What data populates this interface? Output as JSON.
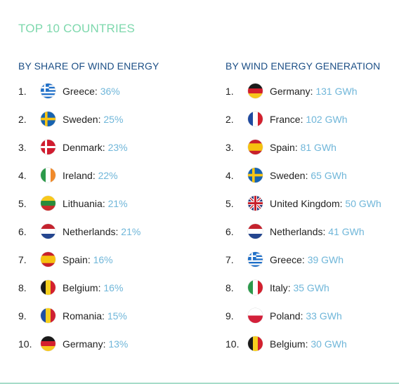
{
  "title": "TOP 10 COUNTRIES",
  "left": {
    "heading": "BY SHARE OF WIND ENERGY",
    "items": [
      {
        "rank": "1.",
        "country": "Greece",
        "value": "36%",
        "flag": "greece-flag"
      },
      {
        "rank": "2.",
        "country": "Sweden",
        "value": "25%",
        "flag": "sweden-flag"
      },
      {
        "rank": "3.",
        "country": "Denmark",
        "value": "23%",
        "flag": "denmark-flag"
      },
      {
        "rank": "4.",
        "country": "Ireland",
        "value": "22%",
        "flag": "ireland-flag"
      },
      {
        "rank": "5.",
        "country": "Lithuania",
        "value": "21%",
        "flag": "lithuania-flag"
      },
      {
        "rank": "6.",
        "country": "Netherlands",
        "value": "21%",
        "flag": "netherlands-flag"
      },
      {
        "rank": "7.",
        "country": "Spain",
        "value": "16%",
        "flag": "spain-flag"
      },
      {
        "rank": "8.",
        "country": "Belgium",
        "value": "16%",
        "flag": "belgium-flag"
      },
      {
        "rank": "9.",
        "country": "Romania",
        "value": "15%",
        "flag": "romania-flag"
      },
      {
        "rank": "10.",
        "country": "Germany",
        "value": "13%",
        "flag": "germany-flag"
      }
    ]
  },
  "right": {
    "heading": "BY WIND ENERGY GENERATION",
    "items": [
      {
        "rank": "1.",
        "country": "Germany",
        "value": "131 GWh",
        "flag": "germany-flag"
      },
      {
        "rank": "2.",
        "country": "France",
        "value": "102 GWh",
        "flag": "france-flag"
      },
      {
        "rank": "3.",
        "country": "Spain",
        "value": "81 GWh",
        "flag": "spain-flag"
      },
      {
        "rank": "4.",
        "country": "Sweden",
        "value": "65 GWh",
        "flag": "sweden-flag"
      },
      {
        "rank": "5.",
        "country": "United Kingdom",
        "value": "50 GWh",
        "flag": "uk-flag"
      },
      {
        "rank": "6.",
        "country": "Netherlands",
        "value": "41 GWh",
        "flag": "netherlands-flag"
      },
      {
        "rank": "7.",
        "country": "Greece",
        "value": "39 GWh",
        "flag": "greece-flag"
      },
      {
        "rank": "8.",
        "country": "Italy",
        "value": "35 GWh",
        "flag": "italy-flag"
      },
      {
        "rank": "9.",
        "country": "Poland",
        "value": "33 GWh",
        "flag": "poland-flag"
      },
      {
        "rank": "10.",
        "country": "Belgium",
        "value": "30 GWh",
        "flag": "belgium-flag"
      }
    ]
  },
  "colors": {
    "title": "#7ed8ad",
    "heading": "#1c4f86",
    "value": "#6fb6d9",
    "text": "#222222"
  }
}
